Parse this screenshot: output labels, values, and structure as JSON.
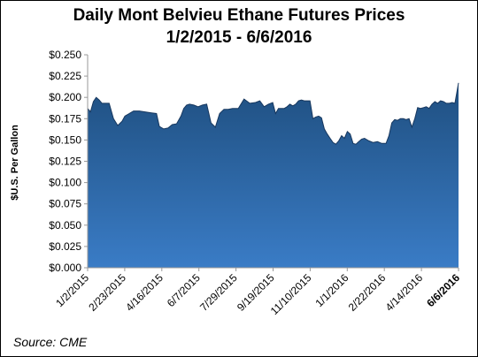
{
  "chart_data": {
    "type": "area",
    "title": "Daily Mont Belvieu Ethane Futures Prices",
    "subtitle": "1/2/2015 - 6/6/2016",
    "ylabel": "$U.S. Per Gallon",
    "xlabel": "",
    "ylim": [
      0,
      0.25
    ],
    "yticks": [
      "$0.000",
      "$0.025",
      "$0.050",
      "$0.075",
      "$0.100",
      "$0.125",
      "$0.150",
      "$0.175",
      "$0.200",
      "$0.225",
      "$0.250"
    ],
    "xticks": [
      "1/2/2015",
      "2/23/2015",
      "4/16/2015",
      "6/7/2015",
      "7/29/2015",
      "9/19/2015",
      "11/10/2015",
      "1/1/2016",
      "2/22/2016",
      "4/14/2016",
      "6/6/2016"
    ],
    "grid": false,
    "legend": "none",
    "color": "#2e6db3",
    "x": [
      0,
      4,
      8,
      12,
      16,
      20,
      24,
      30,
      36,
      42,
      48,
      52,
      58,
      64,
      72,
      80,
      88,
      96,
      100,
      106,
      112,
      118,
      124,
      130,
      134,
      138,
      142,
      148,
      154,
      160,
      166,
      172,
      178,
      184,
      190,
      196,
      202,
      210,
      218,
      226,
      234,
      240,
      246,
      252,
      258,
      262,
      266,
      270,
      274,
      278,
      282,
      286,
      290,
      294,
      298,
      302,
      306,
      310,
      314,
      318,
      322,
      326,
      330,
      334,
      338,
      342,
      346,
      350,
      354,
      358,
      362,
      366,
      370,
      374,
      378,
      382,
      386,
      392,
      398,
      404,
      410,
      416,
      420,
      424,
      428,
      432,
      436,
      440,
      444,
      448,
      452,
      456,
      460,
      464,
      468,
      472,
      476,
      480,
      484,
      488,
      492,
      496,
      500,
      504,
      508,
      512,
      517
    ],
    "values": [
      0.187,
      0.183,
      0.195,
      0.2,
      0.197,
      0.193,
      0.193,
      0.193,
      0.175,
      0.167,
      0.172,
      0.178,
      0.181,
      0.184,
      0.184,
      0.183,
      0.182,
      0.181,
      0.166,
      0.163,
      0.164,
      0.168,
      0.169,
      0.178,
      0.187,
      0.191,
      0.192,
      0.191,
      0.189,
      0.191,
      0.192,
      0.17,
      0.165,
      0.181,
      0.186,
      0.186,
      0.187,
      0.187,
      0.198,
      0.193,
      0.194,
      0.196,
      0.189,
      0.192,
      0.194,
      0.181,
      0.187,
      0.187,
      0.187,
      0.189,
      0.192,
      0.19,
      0.192,
      0.196,
      0.197,
      0.196,
      0.196,
      0.196,
      0.175,
      0.177,
      0.178,
      0.176,
      0.163,
      0.157,
      0.152,
      0.147,
      0.145,
      0.149,
      0.155,
      0.152,
      0.16,
      0.157,
      0.146,
      0.145,
      0.148,
      0.151,
      0.152,
      0.149,
      0.147,
      0.148,
      0.146,
      0.146,
      0.155,
      0.17,
      0.174,
      0.173,
      0.175,
      0.175,
      0.174,
      0.175,
      0.165,
      0.175,
      0.188,
      0.187,
      0.188,
      0.189,
      0.187,
      0.192,
      0.195,
      0.193,
      0.196,
      0.195,
      0.193,
      0.193,
      0.194,
      0.193,
      0.217
    ]
  },
  "source": "Source: CME"
}
